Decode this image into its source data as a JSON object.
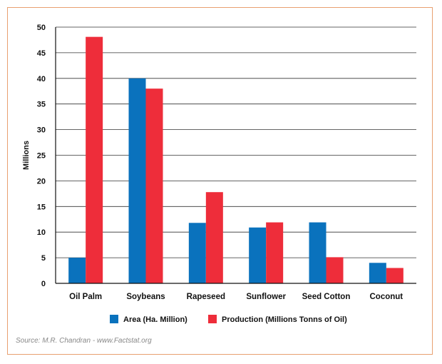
{
  "chart_data": {
    "type": "bar",
    "ylabel": "Millions",
    "categories": [
      "Oil Palm",
      "Soybeans",
      "Rapeseed",
      "Sunflower",
      "Seed Cotton",
      "Coconut"
    ],
    "series": [
      {
        "name": "Area (Ha. Million)",
        "color": "#0a72bd",
        "values": [
          5,
          40,
          11.8,
          10.9,
          11.9,
          4
        ]
      },
      {
        "name": "Production (Millions Tonns of Oil)",
        "color": "#ee2d3a",
        "values": [
          48.1,
          38,
          17.8,
          11.9,
          5.1,
          3
        ]
      }
    ],
    "yticks": [
      0,
      5,
      10,
      15,
      20,
      25,
      30,
      35,
      40,
      45,
      50
    ],
    "ylim": [
      0,
      50
    ],
    "grid": true,
    "legend_position": "bottom"
  },
  "source": "Source: M.R. Chandran - www.Factstat.org"
}
